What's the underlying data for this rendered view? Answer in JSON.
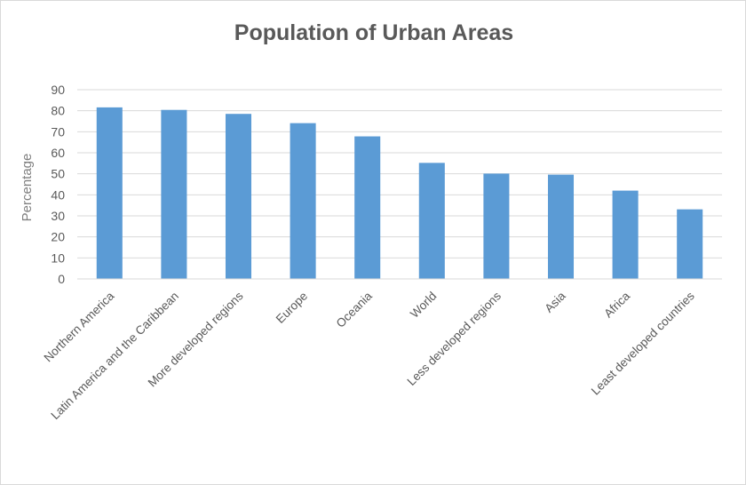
{
  "chart_data": {
    "type": "bar",
    "title": "Population of Urban Areas",
    "xlabel": "",
    "ylabel": "Percentage",
    "ylim": [
      0,
      90
    ],
    "yticks": [
      0,
      10,
      20,
      30,
      40,
      50,
      60,
      70,
      80,
      90
    ],
    "grid": true,
    "legend": "none",
    "bar_color": "#5b9bd5",
    "categories": [
      "Northern America",
      "Latin America and the Caribbean",
      "More developed regions",
      "Europe",
      "Oceania",
      "World",
      "Less developed regions",
      "Asia",
      "Africa",
      "Least developed countries"
    ],
    "values": [
      81.6,
      80.4,
      78.5,
      74.1,
      67.8,
      55.2,
      50.1,
      49.6,
      42,
      33.1
    ]
  }
}
